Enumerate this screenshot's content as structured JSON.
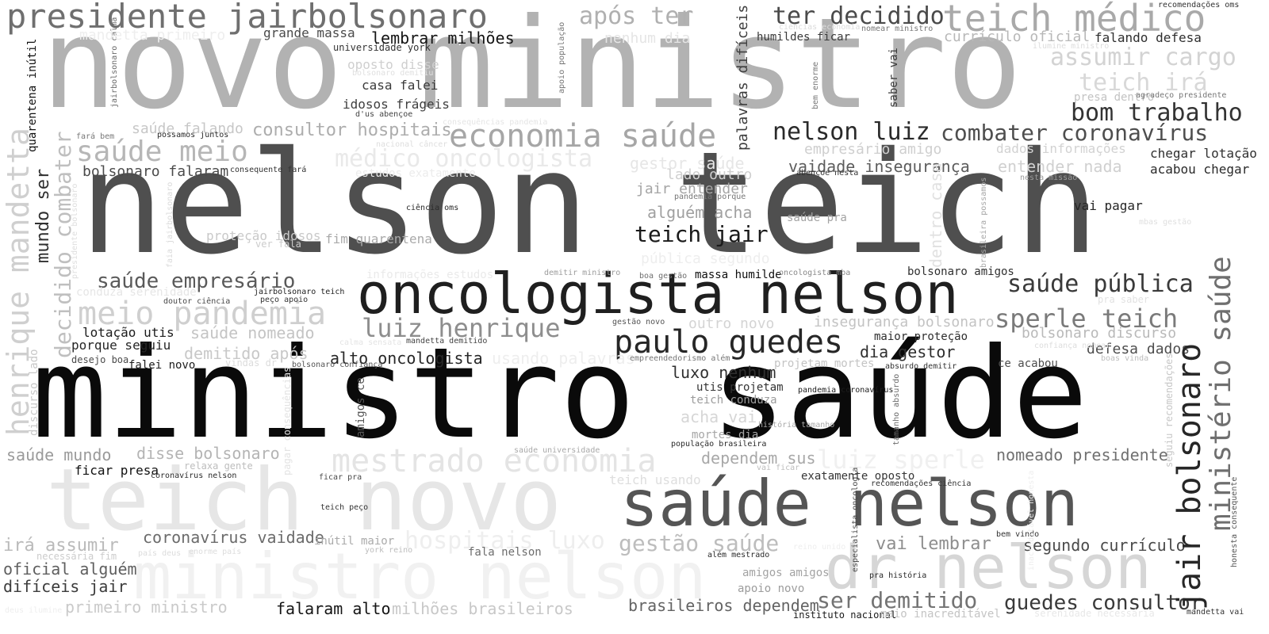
{
  "words": [
    {
      "text": "ministro saúde",
      "color": "#0a0a0a"
    },
    {
      "text": "nelson teich",
      "color": "#4f4f4f"
    },
    {
      "text": "novo ministro",
      "color": "#b2b2b2"
    },
    {
      "text": "teich novo",
      "color": "#e6e6e6"
    },
    {
      "text": "ministro nelson",
      "color": "#f1f1f1"
    },
    {
      "text": "saúde nelson",
      "color": "#555555"
    },
    {
      "text": "dr nelson",
      "color": "#d6d6d6"
    },
    {
      "text": "oncologista nelson",
      "color": "#1f1f1f"
    },
    {
      "text": "paulo guedes",
      "color": "#262626"
    },
    {
      "text": "presidente jairbolsonaro",
      "color": "#6f6f6f"
    },
    {
      "text": "teich médico",
      "color": "#a9a9a9"
    },
    {
      "text": "economia saúde",
      "color": "#a6a6a6"
    },
    {
      "text": "médico oncologista",
      "color": "#e9e9e9"
    },
    {
      "text": "mestrado economia",
      "color": "#e4e4e4"
    },
    {
      "text": "meio pandemia",
      "color": "#cfcfcf"
    },
    {
      "text": "saúde meio",
      "color": "#b6b6b6"
    },
    {
      "text": "luiz henrique",
      "color": "#8e8e8e"
    },
    {
      "text": "nelson luiz",
      "color": "#2a2a2a"
    },
    {
      "text": "combater coronavírus",
      "color": "#4e4e4e"
    },
    {
      "text": "bom trabalho",
      "color": "#333333"
    },
    {
      "text": "ter decidido",
      "color": "#4a4a4a"
    },
    {
      "text": "após ter",
      "color": "#b0b0b0"
    },
    {
      "text": "assumir cargo",
      "color": "#d3d3d3"
    },
    {
      "text": "teich irá",
      "color": "#d8d8d8"
    },
    {
      "text": "sperle teich",
      "color": "#7a7a7a"
    },
    {
      "text": "saúde pública",
      "color": "#3a3a3a"
    },
    {
      "text": "saúde empresário",
      "color": "#5a5a5a"
    },
    {
      "text": "teich jair",
      "color": "#1a1a1a"
    },
    {
      "text": "luiz sperle",
      "color": "#f0f0f0"
    },
    {
      "text": "hospitais luxo",
      "color": "#eeeeee"
    },
    {
      "text": "gestão saúde",
      "color": "#bdbdbd"
    },
    {
      "text": "ser demitido",
      "color": "#737373"
    },
    {
      "text": "guedes consultor",
      "color": "#3a3a3a"
    },
    {
      "text": "brasileiros dependem",
      "color": "#636363"
    },
    {
      "text": "milhões brasileiros",
      "color": "#c8c8c8"
    },
    {
      "text": "falaram alto",
      "color": "#151515"
    },
    {
      "text": "primeiro ministro",
      "color": "#cacaca"
    },
    {
      "text": "difíceis jair",
      "color": "#3c3c3c"
    },
    {
      "text": "oficial alguém",
      "color": "#5f5f5f"
    },
    {
      "text": "irá assumir",
      "color": "#bababa"
    },
    {
      "text": "coronavírus vaidade",
      "color": "#6b6b6b"
    },
    {
      "text": "saúde mundo",
      "color": "#9a9a9a"
    },
    {
      "text": "disse bolsonaro",
      "color": "#b4b4b4"
    },
    {
      "text": "ficar presa",
      "color": "#111111"
    },
    {
      "text": "vai lembrar",
      "color": "#8e8e8e"
    },
    {
      "text": "segundo currículo",
      "color": "#4a4a4a"
    },
    {
      "text": "nomeado presidente",
      "color": "#707070"
    },
    {
      "text": "dependem sus",
      "color": "#a8a8a8"
    },
    {
      "text": "dia gestor",
      "color": "#2f2f2f"
    },
    {
      "text": "alto oncologista",
      "color": "#272727"
    },
    {
      "text": "luxo nenhum",
      "color": "#2f2f2f"
    },
    {
      "text": "consultor hospitais",
      "color": "#adadad"
    },
    {
      "text": "saúde falando",
      "color": "#c7c7c7"
    },
    {
      "text": "bolsonaro falaram",
      "color": "#4b4b4b"
    },
    {
      "text": "lembrar milhões",
      "color": "#141414"
    },
    {
      "text": "alguém acha",
      "color": "#a0a0a0"
    },
    {
      "text": "jair entender",
      "color": "#a5a5a5"
    },
    {
      "text": "empresário amigo",
      "color": "#cfcfcf"
    },
    {
      "text": "vaidade insegurança",
      "color": "#5c5c5c"
    },
    {
      "text": "entender nada",
      "color": "#d0d0d0"
    },
    {
      "text": "dados informações",
      "color": "#d2d2d2"
    },
    {
      "text": "currículo oficial",
      "color": "#b8b8b8"
    },
    {
      "text": "falando defesa",
      "color": "#2e2e2e"
    },
    {
      "text": "humildes ficar",
      "color": "#3a3a3a"
    },
    {
      "text": "insegurança bolsonaro",
      "color": "#c3c3c3"
    },
    {
      "text": "bolsonaro discurso",
      "color": "#b9b9b9"
    },
    {
      "text": "defesa dados",
      "color": "#4d4d4d"
    },
    {
      "text": "outro novo",
      "color": "#d4d4d4"
    },
    {
      "text": "demitido após",
      "color": "#c8c8c8"
    },
    {
      "text": "saúde nomeado",
      "color": "#c4c4c4"
    },
    {
      "text": "lotação utis",
      "color": "#1c1c1c"
    },
    {
      "text": "porque seguiu",
      "color": "#262626"
    },
    {
      "text": "gestor saúde",
      "color": "#e6e6e6"
    },
    {
      "text": "lado outro",
      "color": "#cfcfcf"
    },
    {
      "text": "fim quarentena",
      "color": "#aaaaaa"
    },
    {
      "text": "proteção idosos",
      "color": "#c9c9c9"
    },
    {
      "text": "casa falei",
      "color": "#3b3b3b"
    },
    {
      "text": "idosos frágeis",
      "color": "#3f3f3f"
    },
    {
      "text": "nenhum dia",
      "color": "#e5e5e5"
    },
    {
      "text": "grande massa",
      "color": "#4a4a4a"
    },
    {
      "text": "bolsonaro amigos",
      "color": "#303030"
    },
    {
      "text": "massa humilde",
      "color": "#0e0e0e"
    },
    {
      "text": "chegar lotação",
      "color": "#303030"
    },
    {
      "text": "acabou chegar",
      "color": "#2a2a2a"
    },
    {
      "text": "vai pagar",
      "color": "#262626"
    },
    {
      "text": "maior proteção",
      "color": "#2e2e2e"
    },
    {
      "text": "ce acabou",
      "color": "#4d4d4d"
    },
    {
      "text": "saúde pra",
      "color": "#a3a3a3"
    },
    {
      "text": "utis projetam",
      "color": "#333333"
    },
    {
      "text": "teich conduza",
      "color": "#9c9c9c"
    },
    {
      "text": "acha vai",
      "color": "#d6d6d6"
    },
    {
      "text": "mortes dia",
      "color": "#a6a6a6"
    },
    {
      "text": "teich usando",
      "color": "#dedede"
    },
    {
      "text": "exatamente oposto",
      "color": "#363636"
    },
    {
      "text": "falei novo",
      "color": "#1e1e1e"
    },
    {
      "text": "desejo boa",
      "color": "#4a4a4a"
    },
    {
      "text": "pandemia coronavírus",
      "color": "#1d1d1d"
    },
    {
      "text": "projetam mortes",
      "color": "#c4c4c4"
    },
    {
      "text": "usando palavras",
      "color": "#eeeeee"
    },
    {
      "text": "fala nelson",
      "color": "#6d6d6d"
    },
    {
      "text": "amigos amigos",
      "color": "#a3a3a3"
    },
    {
      "text": "apoio novo",
      "color": "#9c9c9c"
    },
    {
      "text": "instituto nacional",
      "color": "#1a1a1a"
    },
    {
      "text": "maio inacreditável",
      "color": "#c4c4c4"
    },
    {
      "text": "serenidade necessária",
      "color": "#e8e8e8"
    },
    {
      "text": "mandetta vai",
      "color": "#333333"
    },
    {
      "text": "inútil maior",
      "color": "#aaaaaa"
    },
    {
      "text": "conduza serenidade",
      "color": "#e6e6e6"
    },
    {
      "text": "informações estudos",
      "color": "#eaeaea"
    },
    {
      "text": "estudos exatamente",
      "color": "#ececec"
    },
    {
      "text": "oposto disse",
      "color": "#cfcfcf"
    },
    {
      "text": "saber vai",
      "color": "#3a3a3a"
    },
    {
      "text": "apoio população",
      "color": "#777777"
    },
    {
      "text": "dentro casa",
      "color": "#e1e1e1"
    },
    {
      "text": "amigos ce",
      "color": "#555555"
    },
    {
      "text": "especialista oncologia",
      "color": "#4a4a4a"
    },
    {
      "text": "tamanho absurdo",
      "color": "#6a6a6a"
    },
    {
      "text": "bem enorme",
      "color": "#777777"
    },
    {
      "text": "brasileira possamos",
      "color": "#a7a7a7"
    },
    {
      "text": "palavras difíceis",
      "color": "#3f3f3f"
    },
    {
      "text": "jair bolsonaro",
      "color": "#262626"
    },
    {
      "text": "ministério saúde",
      "color": "#6f6f6f"
    },
    {
      "text": "henrique mandetta",
      "color": "#cfcfcf"
    },
    {
      "text": "decidido combater",
      "color": "#bfbfbf"
    },
    {
      "text": "mundo ser",
      "color": "#303030"
    },
    {
      "text": "quarentena inútil",
      "color": "#111111"
    },
    {
      "text": "discurso lado",
      "color": "#c8c8c8"
    },
    {
      "text": "faia jairbolsonaro",
      "color": "#dadada"
    },
    {
      "text": "presidente bolsonaro",
      "color": "#dedede"
    },
    {
      "text": "jairbolsonaro calma",
      "color": "#6a6a6a"
    },
    {
      "text": "mandetta primeiro",
      "color": "#eeeeee"
    },
    {
      "text": "universidade york",
      "color": "#333333"
    },
    {
      "text": "nacional câncer",
      "color": "#dedede"
    },
    {
      "text": "d'us abençoe",
      "color": "#444444"
    },
    {
      "text": "consequências pandemia",
      "color": "#e5e5e5"
    },
    {
      "text": "possamos juntos",
      "color": "#2a2a2a"
    },
    {
      "text": "consequente fará",
      "color": "#333333"
    },
    {
      "text": "fará bem",
      "color": "#777777"
    },
    {
      "text": "ciência oms",
      "color": "#2a2a2a"
    },
    {
      "text": "ver fala",
      "color": "#cccccc"
    },
    {
      "text": "jairbolsonaro teich",
      "color": "#222222"
    },
    {
      "text": "peço apoio",
      "color": "#333333"
    },
    {
      "text": "doutor ciência",
      "color": "#4a4a4a"
    },
    {
      "text": "calma sensata",
      "color": "#e4e4e4"
    },
    {
      "text": "mandetta demitido",
      "color": "#444444"
    },
    {
      "text": "vindas dr",
      "color": "#dcdcdc"
    },
    {
      "text": "bolsonaro confiança",
      "color": "#555555"
    },
    {
      "text": "demitir ministro",
      "color": "#9c9c9c"
    },
    {
      "text": "boa gestão",
      "color": "#6f6f6f"
    },
    {
      "text": "oncologista mba",
      "color": "#888888"
    },
    {
      "text": "gestão novo",
      "color": "#555555"
    },
    {
      "text": "pandemia porque",
      "color": "#777777"
    },
    {
      "text": "abençoe nesta",
      "color": "#333333"
    },
    {
      "text": "nesta missão",
      "color": "#9c9c9c"
    },
    {
      "text": "mbas gestão",
      "color": "#e0e0e0"
    },
    {
      "text": "pública segundo",
      "color": "#eeeeee"
    },
    {
      "text": "pra saber",
      "color": "#e2e2e2"
    },
    {
      "text": "confiança nomear",
      "color": "#dddddd"
    },
    {
      "text": "boas vinda",
      "color": "#bdbdbd"
    },
    {
      "text": "empreendedorismo além",
      "color": "#777777"
    },
    {
      "text": "absurdo demitir",
      "color": "#333333"
    },
    {
      "text": "história tamanho",
      "color": "#aaaaaa"
    },
    {
      "text": "população brasileira",
      "color": "#2a2a2a"
    },
    {
      "text": "vai ficar",
      "color": "#bdbdbd"
    },
    {
      "text": "saúde universidade",
      "color": "#a9a9a9"
    },
    {
      "text": "relaxa gente",
      "color": "#bdbdbd"
    },
    {
      "text": "coronavírus nelson",
      "color": "#2a2a2a"
    },
    {
      "text": "ficar pra",
      "color": "#4a4a4a"
    },
    {
      "text": "teich peço",
      "color": "#333333"
    },
    {
      "text": "recomendações ciência",
      "color": "#333333"
    },
    {
      "text": "pra história",
      "color": "#2a2a2a"
    },
    {
      "text": "reino unido",
      "color": "#eeeeee"
    },
    {
      "text": "bem vindo",
      "color": "#333333"
    },
    {
      "text": "além mestrado",
      "color": "#2a2a2a"
    },
    {
      "text": "enorme país",
      "color": "#dddddd"
    },
    {
      "text": "york reino",
      "color": "#bdbdbd"
    },
    {
      "text": "país deus",
      "color": "#dcdcdc"
    },
    {
      "text": "necessária fim",
      "color": "#cccccc"
    },
    {
      "text": "deus ilumine",
      "color": "#eeeeee"
    },
    {
      "text": "recomendações oms",
      "color": "#333333"
    },
    {
      "text": "nomear ministro",
      "color": "#777777"
    },
    {
      "text": "ilumine ministro",
      "color": "#dddddd"
    },
    {
      "text": "presa dentro",
      "color": "#c3c3c3"
    },
    {
      "text": "agradeço presidente",
      "color": "#777777"
    },
    {
      "text": "ciências economia",
      "color": "#dcdcdc"
    },
    {
      "text": "bolsonaro demitiu",
      "color": "#e0e0e0"
    },
    {
      "text": "seguiu recomendações",
      "color": "#c7c7c7"
    },
    {
      "text": "honesta consequente",
      "color": "#555555"
    },
    {
      "text": "pagar consequências",
      "color": "#e3e3e3"
    },
    {
      "text": "inacreditável honesta",
      "color": "#eeeeee"
    }
  ]
}
